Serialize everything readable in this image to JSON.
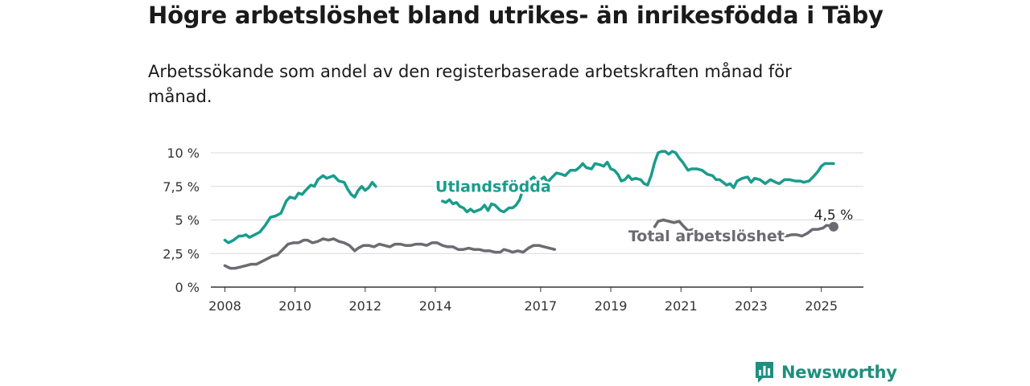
{
  "chart_data": {
    "type": "line",
    "title": "Högre arbetslöshet bland utrikes- än inrikesfödda i Täby",
    "subtitle": "Arbetssökande som andel av den registerbaserade arbetskraften månad för månad.",
    "ylim": [
      0,
      10
    ],
    "yticks": [
      {
        "value": 0,
        "label": "0 %"
      },
      {
        "value": 2.5,
        "label": "2,5 %"
      },
      {
        "value": 5,
        "label": "5 %"
      },
      {
        "value": 7.5,
        "label": "7,5 %"
      },
      {
        "value": 10,
        "label": "10 %"
      }
    ],
    "xlim": [
      2007.6,
      2026.2
    ],
    "xticks": [
      {
        "value": 2008,
        "label": "2008"
      },
      {
        "value": 2010,
        "label": "2010"
      },
      {
        "value": 2012,
        "label": "2012"
      },
      {
        "value": 2014,
        "label": "2014"
      },
      {
        "value": 2017,
        "label": "2017"
      },
      {
        "value": 2019,
        "label": "2019"
      },
      {
        "value": 2021,
        "label": "2021"
      },
      {
        "value": 2023,
        "label": "2023"
      },
      {
        "value": 2025,
        "label": "2025"
      }
    ],
    "grid": true,
    "series": [
      {
        "name": "Utlandsfödda",
        "color": "#1a9c8c",
        "segments": [
          [
            [
              2008.0,
              3.5
            ],
            [
              2008.1,
              3.3
            ],
            [
              2008.25,
              3.5
            ],
            [
              2008.4,
              3.8
            ],
            [
              2008.5,
              3.8
            ],
            [
              2008.6,
              3.9
            ],
            [
              2008.7,
              3.7
            ],
            [
              2008.85,
              3.9
            ],
            [
              2009.0,
              4.1
            ],
            [
              2009.15,
              4.6
            ],
            [
              2009.3,
              5.2
            ],
            [
              2009.45,
              5.3
            ],
            [
              2009.6,
              5.5
            ],
            [
              2009.75,
              6.4
            ],
            [
              2009.85,
              6.7
            ],
            [
              2010.0,
              6.6
            ],
            [
              2010.1,
              7.0
            ],
            [
              2010.2,
              6.9
            ],
            [
              2010.3,
              7.2
            ],
            [
              2010.45,
              7.6
            ],
            [
              2010.55,
              7.5
            ],
            [
              2010.65,
              8.0
            ],
            [
              2010.8,
              8.3
            ],
            [
              2010.9,
              8.1
            ],
            [
              2011.0,
              8.2
            ],
            [
              2011.1,
              8.3
            ],
            [
              2011.25,
              7.9
            ],
            [
              2011.4,
              7.8
            ],
            [
              2011.5,
              7.3
            ],
            [
              2011.6,
              6.9
            ],
            [
              2011.7,
              6.7
            ],
            [
              2011.8,
              7.2
            ],
            [
              2011.9,
              7.5
            ],
            [
              2012.0,
              7.2
            ],
            [
              2012.1,
              7.4
            ],
            [
              2012.2,
              7.8
            ],
            [
              2012.3,
              7.5
            ]
          ],
          [
            [
              2014.2,
              6.4
            ],
            [
              2014.3,
              6.3
            ],
            [
              2014.4,
              6.5
            ],
            [
              2014.5,
              6.2
            ],
            [
              2014.6,
              6.3
            ],
            [
              2014.7,
              6.0
            ],
            [
              2014.8,
              5.9
            ],
            [
              2014.9,
              5.6
            ],
            [
              2015.0,
              5.8
            ],
            [
              2015.1,
              5.6
            ],
            [
              2015.2,
              5.7
            ],
            [
              2015.3,
              5.8
            ],
            [
              2015.4,
              6.1
            ],
            [
              2015.5,
              5.7
            ],
            [
              2015.6,
              6.2
            ],
            [
              2015.7,
              6.1
            ],
            [
              2015.85,
              5.7
            ],
            [
              2015.95,
              5.6
            ],
            [
              2016.1,
              5.9
            ],
            [
              2016.2,
              5.9
            ],
            [
              2016.3,
              6.1
            ],
            [
              2016.4,
              6.5
            ],
            [
              2016.5,
              7.3
            ],
            [
              2016.6,
              7.9
            ],
            [
              2016.7,
              8.0
            ],
            [
              2016.8,
              8.2
            ],
            [
              2016.9,
              7.9
            ],
            [
              2017.0,
              8.0
            ],
            [
              2017.1,
              8.2
            ],
            [
              2017.2,
              7.8
            ],
            [
              2017.3,
              8.1
            ],
            [
              2017.45,
              8.5
            ],
            [
              2017.6,
              8.4
            ],
            [
              2017.7,
              8.3
            ],
            [
              2017.85,
              8.7
            ],
            [
              2018.0,
              8.7
            ],
            [
              2018.1,
              8.9
            ],
            [
              2018.2,
              9.2
            ],
            [
              2018.3,
              8.9
            ],
            [
              2018.45,
              8.8
            ],
            [
              2018.55,
              9.2
            ],
            [
              2018.7,
              9.1
            ],
            [
              2018.8,
              9.0
            ],
            [
              2018.9,
              9.3
            ],
            [
              2019.0,
              8.8
            ],
            [
              2019.1,
              8.7
            ],
            [
              2019.2,
              8.4
            ],
            [
              2019.3,
              7.9
            ],
            [
              2019.4,
              8.0
            ],
            [
              2019.5,
              8.3
            ],
            [
              2019.6,
              8.0
            ],
            [
              2019.7,
              8.1
            ],
            [
              2019.85,
              8.0
            ],
            [
              2019.95,
              7.7
            ],
            [
              2020.05,
              7.6
            ],
            [
              2020.15,
              8.3
            ],
            [
              2020.25,
              9.3
            ],
            [
              2020.35,
              10.0
            ],
            [
              2020.45,
              10.1
            ],
            [
              2020.55,
              10.1
            ],
            [
              2020.65,
              9.9
            ],
            [
              2020.75,
              10.1
            ],
            [
              2020.85,
              10.0
            ],
            [
              2020.95,
              9.6
            ],
            [
              2021.05,
              9.3
            ],
            [
              2021.2,
              8.7
            ],
            [
              2021.3,
              8.8
            ],
            [
              2021.45,
              8.8
            ],
            [
              2021.6,
              8.7
            ],
            [
              2021.75,
              8.4
            ],
            [
              2021.9,
              8.3
            ],
            [
              2022.0,
              8.0
            ],
            [
              2022.1,
              8.0
            ],
            [
              2022.2,
              7.8
            ],
            [
              2022.3,
              7.6
            ],
            [
              2022.4,
              7.7
            ],
            [
              2022.5,
              7.4
            ],
            [
              2022.6,
              7.9
            ],
            [
              2022.75,
              8.1
            ],
            [
              2022.9,
              8.2
            ],
            [
              2023.0,
              7.8
            ],
            [
              2023.1,
              8.1
            ],
            [
              2023.25,
              8.0
            ],
            [
              2023.4,
              7.7
            ],
            [
              2023.55,
              8.0
            ],
            [
              2023.7,
              7.8
            ],
            [
              2023.8,
              7.7
            ],
            [
              2023.95,
              8.0
            ],
            [
              2024.1,
              8.0
            ],
            [
              2024.25,
              7.9
            ],
            [
              2024.4,
              7.9
            ],
            [
              2024.5,
              7.8
            ],
            [
              2024.65,
              7.9
            ],
            [
              2024.8,
              8.3
            ],
            [
              2024.9,
              8.6
            ],
            [
              2025.0,
              9.0
            ],
            [
              2025.1,
              9.2
            ],
            [
              2025.35,
              9.2
            ]
          ]
        ]
      },
      {
        "name": "Total arbetslöshet",
        "color": "#6b6b72",
        "segments": [
          [
            [
              2008.0,
              1.6
            ],
            [
              2008.15,
              1.4
            ],
            [
              2008.3,
              1.4
            ],
            [
              2008.45,
              1.5
            ],
            [
              2008.6,
              1.6
            ],
            [
              2008.75,
              1.7
            ],
            [
              2008.9,
              1.7
            ],
            [
              2009.05,
              1.9
            ],
            [
              2009.2,
              2.1
            ],
            [
              2009.35,
              2.3
            ],
            [
              2009.5,
              2.4
            ],
            [
              2009.65,
              2.8
            ],
            [
              2009.8,
              3.2
            ],
            [
              2009.95,
              3.3
            ],
            [
              2010.1,
              3.3
            ],
            [
              2010.25,
              3.5
            ],
            [
              2010.35,
              3.5
            ],
            [
              2010.5,
              3.3
            ],
            [
              2010.65,
              3.4
            ],
            [
              2010.8,
              3.6
            ],
            [
              2010.95,
              3.5
            ],
            [
              2011.1,
              3.6
            ],
            [
              2011.25,
              3.4
            ],
            [
              2011.4,
              3.3
            ],
            [
              2011.55,
              3.1
            ],
            [
              2011.7,
              2.7
            ],
            [
              2011.8,
              2.9
            ],
            [
              2011.95,
              3.1
            ],
            [
              2012.1,
              3.1
            ],
            [
              2012.25,
              3.0
            ],
            [
              2012.4,
              3.2
            ],
            [
              2012.55,
              3.1
            ],
            [
              2012.7,
              3.0
            ],
            [
              2012.85,
              3.2
            ],
            [
              2013.0,
              3.2
            ],
            [
              2013.15,
              3.1
            ],
            [
              2013.3,
              3.1
            ],
            [
              2013.45,
              3.2
            ],
            [
              2013.6,
              3.2
            ],
            [
              2013.75,
              3.1
            ],
            [
              2013.9,
              3.3
            ],
            [
              2014.05,
              3.3
            ],
            [
              2014.2,
              3.1
            ],
            [
              2014.35,
              3.0
            ],
            [
              2014.5,
              3.0
            ],
            [
              2014.65,
              2.8
            ],
            [
              2014.8,
              2.8
            ],
            [
              2014.95,
              2.9
            ],
            [
              2015.1,
              2.8
            ],
            [
              2015.25,
              2.8
            ],
            [
              2015.4,
              2.7
            ],
            [
              2015.55,
              2.7
            ],
            [
              2015.7,
              2.6
            ],
            [
              2015.85,
              2.6
            ],
            [
              2015.95,
              2.8
            ],
            [
              2016.1,
              2.7
            ],
            [
              2016.2,
              2.6
            ],
            [
              2016.35,
              2.7
            ],
            [
              2016.5,
              2.6
            ],
            [
              2016.65,
              2.9
            ],
            [
              2016.8,
              3.1
            ],
            [
              2016.95,
              3.1
            ],
            [
              2017.1,
              3.0
            ],
            [
              2017.25,
              2.9
            ],
            [
              2017.4,
              2.8
            ]
          ],
          [
            [
              2020.25,
              4.5
            ],
            [
              2020.35,
              4.9
            ],
            [
              2020.5,
              5.0
            ],
            [
              2020.65,
              4.9
            ],
            [
              2020.8,
              4.8
            ],
            [
              2020.95,
              4.9
            ],
            [
              2021.05,
              4.6
            ],
            [
              2021.2,
              4.2
            ],
            [
              2021.35,
              4.3
            ]
          ],
          [
            [
              2021.85,
              3.8
            ],
            [
              2022.0,
              3.8
            ],
            [
              2022.15,
              3.6
            ],
            [
              2022.35,
              3.5
            ],
            [
              2022.5,
              3.5
            ],
            [
              2022.65,
              3.6
            ],
            [
              2022.8,
              3.6
            ],
            [
              2022.95,
              3.5
            ],
            [
              2023.1,
              3.6
            ],
            [
              2023.25,
              3.5
            ],
            [
              2023.4,
              3.4
            ],
            [
              2023.55,
              3.6
            ],
            [
              2023.7,
              3.7
            ],
            [
              2023.85,
              3.8
            ],
            [
              2024.0,
              3.8
            ],
            [
              2024.15,
              3.9
            ],
            [
              2024.3,
              3.9
            ],
            [
              2024.45,
              3.8
            ],
            [
              2024.6,
              4.0
            ],
            [
              2024.75,
              4.3
            ],
            [
              2024.9,
              4.3
            ],
            [
              2025.05,
              4.4
            ],
            [
              2025.15,
              4.6
            ],
            [
              2025.35,
              4.5
            ]
          ]
        ]
      }
    ],
    "series_labels": [
      {
        "text": "Utlandsfödda",
        "x": 2014.0,
        "y": 7.1
      },
      {
        "text": "Total arbetslöshet",
        "x": 2019.5,
        "y": 3.4
      }
    ],
    "end_annotation": {
      "text": "4,5 %",
      "x": 2025.35,
      "y": 4.5
    }
  },
  "branding": {
    "name": "Newsworthy",
    "color": "#1f8f7e"
  }
}
